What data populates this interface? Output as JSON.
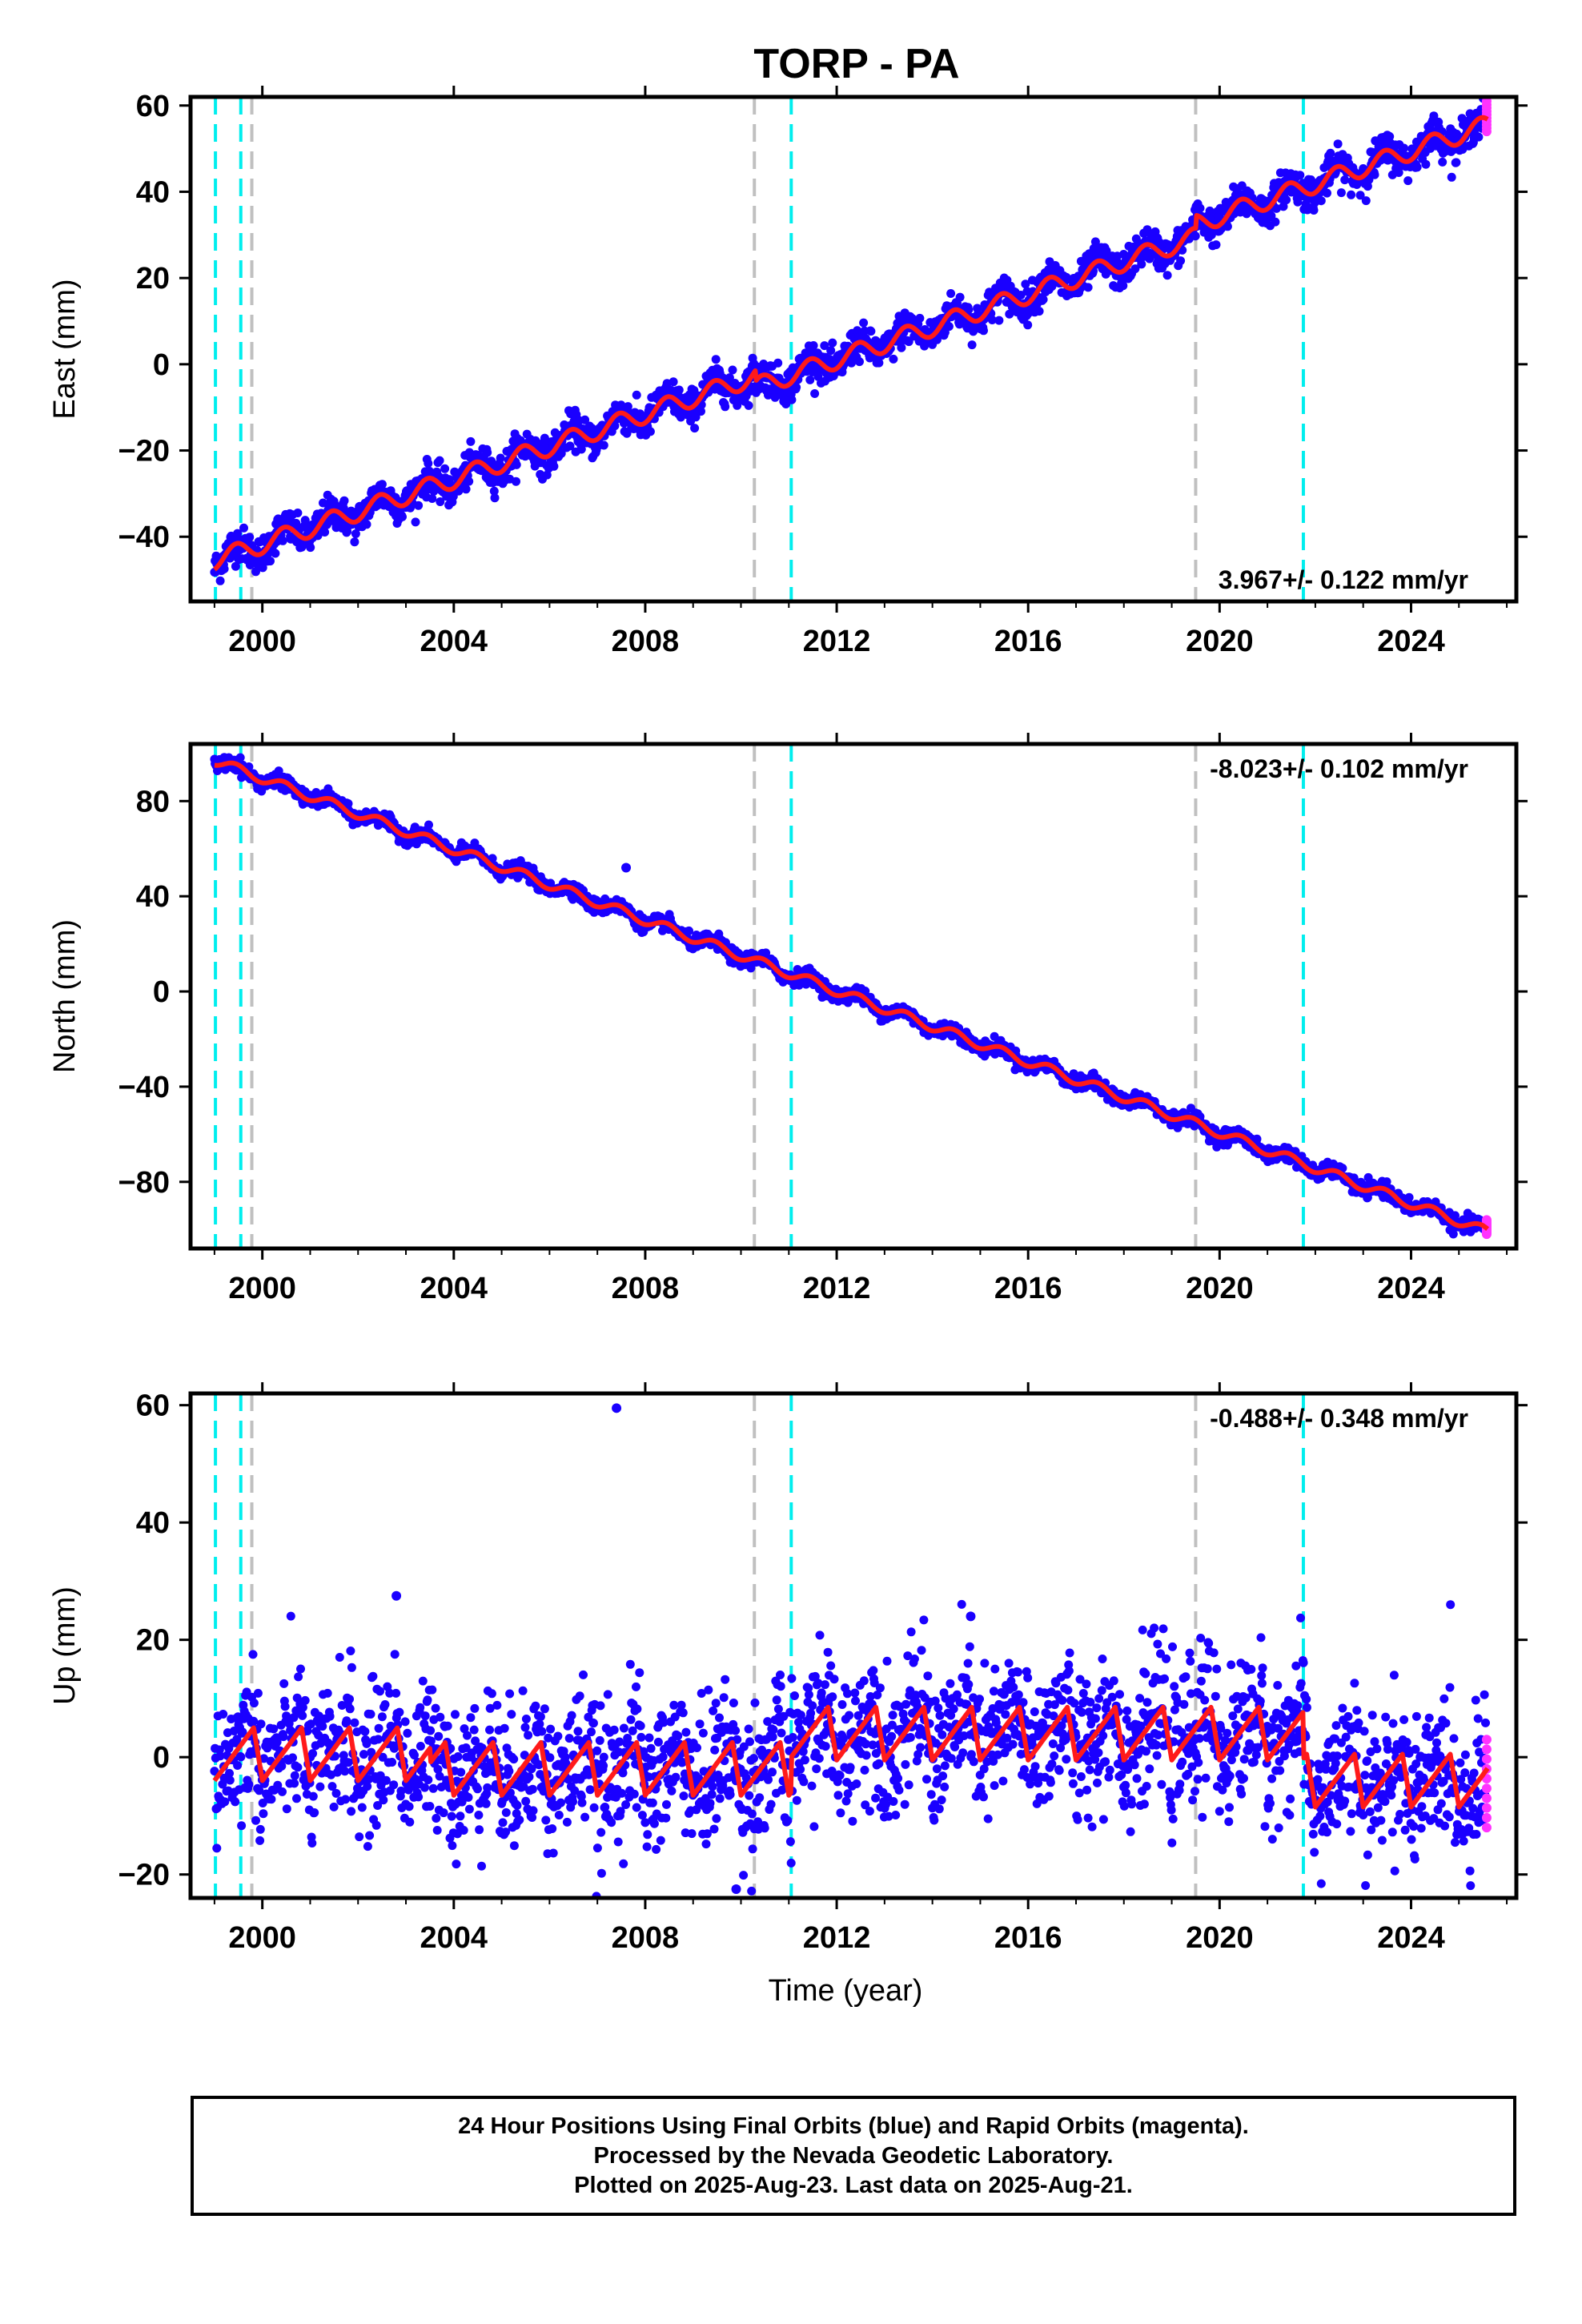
{
  "title": "TORP - PA",
  "footer": {
    "line1": "24 Hour Positions Using Final Orbits (blue) and Rapid Orbits (magenta).",
    "line2": "Processed by the Nevada Geodetic Laboratory.",
    "line3": "Plotted on 2025-Aug-23. Last data on 2025-Aug-21."
  },
  "colors": {
    "final_orbit": "#1a00ff",
    "rapid_orbit": "#ff33ff",
    "model": "#ff1a1a",
    "equipment_change": "#00eeee",
    "other_event": "#c0c0c0",
    "axes": "#000000"
  },
  "chart_data": [
    {
      "type": "scatter",
      "panel": "east",
      "ylabel": "East (mm)",
      "xlabel": "",
      "rate": "3.967+/- 0.122 mm/yr",
      "rate_position": "bottom-right",
      "xlim": [
        1998.5,
        2026.2
      ],
      "ylim": [
        -55,
        62
      ],
      "xticks": [
        "2000",
        "2004",
        "2008",
        "2012",
        "2016",
        "2020",
        "2024"
      ],
      "xtick_values": [
        2000,
        2004,
        2008,
        2012,
        2016,
        2020,
        2024
      ],
      "yticks": [
        "60",
        "40",
        "20",
        "0",
        "−20",
        "−40"
      ],
      "ytick_values": [
        60,
        40,
        20,
        0,
        -20,
        -40
      ],
      "trend": {
        "x": [
          1999.0,
          2025.6
        ],
        "y": [
          -45.5,
          55.0
        ]
      },
      "seasonal_amplitude": 2.2,
      "scatter_spread": 2.0,
      "offsets": [
        {
          "x": 2010.3,
          "dy": -2.5
        },
        {
          "x": 2019.5,
          "dy": 3.0
        }
      ],
      "rapid_orbit_points": {
        "x": 2025.58,
        "y_range": [
          54,
          61
        ]
      },
      "vlines": [
        {
          "x": 1999.02,
          "kind": "equipment_change"
        },
        {
          "x": 1999.55,
          "kind": "equipment_change"
        },
        {
          "x": 1999.78,
          "kind": "other_event"
        },
        {
          "x": 2010.28,
          "kind": "other_event"
        },
        {
          "x": 2011.05,
          "kind": "equipment_change"
        },
        {
          "x": 2019.5,
          "kind": "other_event"
        },
        {
          "x": 2021.75,
          "kind": "equipment_change"
        }
      ]
    },
    {
      "type": "scatter",
      "panel": "north",
      "ylabel": "North (mm)",
      "xlabel": "",
      "rate": "-8.023+/- 0.102 mm/yr",
      "rate_position": "top-right",
      "xlim": [
        1998.5,
        2026.2
      ],
      "ylim": [
        -108,
        104
      ],
      "xticks": [
        "2000",
        "2004",
        "2008",
        "2012",
        "2016",
        "2020",
        "2024"
      ],
      "xtick_values": [
        2000,
        2004,
        2008,
        2012,
        2016,
        2020,
        2024
      ],
      "yticks": [
        "80",
        "40",
        "0",
        "−40",
        "−80"
      ],
      "ytick_values": [
        80,
        40,
        0,
        -40,
        -80
      ],
      "trend": {
        "x": [
          1999.0,
          2025.6
        ],
        "y": [
          97.0,
          -101.0
        ]
      },
      "seasonal_amplitude": 2.0,
      "scatter_spread": 1.5,
      "offsets": [],
      "outliers": [
        {
          "x": 2007.6,
          "y": 52
        }
      ],
      "rapid_orbit_points": {
        "x": 2025.58,
        "y_range": [
          -102,
          -96
        ]
      },
      "vlines": [
        {
          "x": 1999.02,
          "kind": "equipment_change"
        },
        {
          "x": 1999.55,
          "kind": "equipment_change"
        },
        {
          "x": 1999.78,
          "kind": "other_event"
        },
        {
          "x": 2010.28,
          "kind": "other_event"
        },
        {
          "x": 2011.05,
          "kind": "equipment_change"
        },
        {
          "x": 2019.5,
          "kind": "other_event"
        },
        {
          "x": 2021.75,
          "kind": "equipment_change"
        }
      ]
    },
    {
      "type": "scatter",
      "panel": "up",
      "ylabel": "Up (mm)",
      "xlabel": "Time (year)",
      "rate": "-0.488+/- 0.348 mm/yr",
      "rate_position": "top-right",
      "xlim": [
        1998.5,
        2026.2
      ],
      "ylim": [
        -24,
        62
      ],
      "xticks": [
        "2000",
        "2004",
        "2008",
        "2012",
        "2016",
        "2020",
        "2024"
      ],
      "xtick_values": [
        2000,
        2004,
        2008,
        2012,
        2016,
        2020,
        2024
      ],
      "yticks": [
        "60",
        "40",
        "20",
        "0",
        "−20"
      ],
      "ytick_values": [
        60,
        40,
        20,
        0,
        -20
      ],
      "segments": [
        {
          "x_range": [
            1999.0,
            2003.5
          ],
          "level": 0.5
        },
        {
          "x_range": [
            2003.5,
            2011.05
          ],
          "level": -2.0
        },
        {
          "x_range": [
            2011.05,
            2021.75
          ],
          "level": 4.0
        },
        {
          "x_range": [
            2021.75,
            2025.6
          ],
          "level": -4.0
        }
      ],
      "seasonal_amplitude": 4.5,
      "scatter_spread": 6.0,
      "outliers": [
        {
          "x": 2007.4,
          "y": 59.5
        },
        {
          "x": 2002.8,
          "y": 27.5
        },
        {
          "x": 2009.9,
          "y": -22.5
        },
        {
          "x": 2014.8,
          "y": 24
        }
      ],
      "rapid_orbit_points": {
        "x": 2025.58,
        "y_range": [
          -12,
          3
        ]
      },
      "vlines": [
        {
          "x": 1999.02,
          "kind": "equipment_change"
        },
        {
          "x": 1999.55,
          "kind": "equipment_change"
        },
        {
          "x": 1999.78,
          "kind": "other_event"
        },
        {
          "x": 2010.28,
          "kind": "other_event"
        },
        {
          "x": 2011.05,
          "kind": "equipment_change"
        },
        {
          "x": 2019.5,
          "kind": "other_event"
        },
        {
          "x": 2021.75,
          "kind": "equipment_change"
        }
      ]
    }
  ]
}
